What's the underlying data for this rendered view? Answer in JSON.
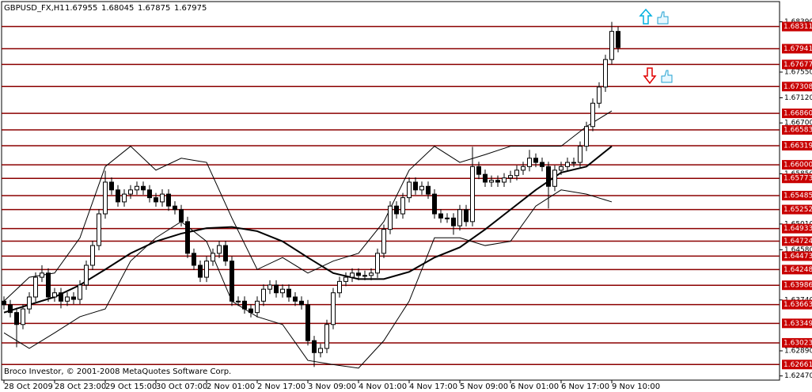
{
  "chart_data": {
    "type": "candlestick",
    "symbol": "GBPUSD_FX,H1",
    "quote": [
      1.67955,
      1.68045,
      1.67875,
      1.67975
    ],
    "footer": "Broco Investor, © 2001-2008 MetaQuotes Software Corp.",
    "categories": [
      "28 Oct 2009",
      null,
      null,
      null,
      null,
      null,
      null,
      null,
      "28 Oct 23:00",
      null,
      null,
      null,
      null,
      null,
      null,
      null,
      "29 Oct 15:00",
      null,
      null,
      null,
      null,
      null,
      null,
      null,
      "30 Oct 07:00",
      null,
      null,
      null,
      null,
      null,
      null,
      null,
      "2 Nov 01:00",
      null,
      null,
      null,
      null,
      null,
      null,
      null,
      "2 Nov 17:00",
      null,
      null,
      null,
      null,
      null,
      null,
      null,
      "3 Nov 09:00",
      null,
      null,
      null,
      null,
      null,
      null,
      null,
      "4 Nov 01:00",
      null,
      null,
      null,
      null,
      null,
      null,
      null,
      "4 Nov 17:00",
      null,
      null,
      null,
      null,
      null,
      null,
      null,
      "5 Nov 09:00",
      null,
      null,
      null,
      null,
      null,
      null,
      null,
      "6 Nov 01:00",
      null,
      null,
      null,
      null,
      null,
      null,
      null,
      "6 Nov 17:00",
      null,
      null,
      null,
      null,
      null,
      null,
      null,
      "9 Nov 10:00",
      null
    ],
    "open": [
      1.6372,
      1.6366,
      1.6353,
      1.6333,
      1.6359,
      1.6379,
      1.6412,
      1.6419,
      1.6379,
      1.6386,
      1.6372,
      1.6379,
      1.6375,
      1.6399,
      1.6432,
      1.6465,
      1.6518,
      1.6571,
      1.6558,
      1.6538,
      1.6551,
      1.6558,
      1.6564,
      1.6558,
      1.6545,
      1.6538,
      1.6551,
      1.6531,
      1.6525,
      1.6505,
      1.6452,
      1.6432,
      1.6412,
      1.6439,
      1.6452,
      1.6465,
      1.6439,
      1.6372,
      1.6372,
      1.6359,
      1.6353,
      1.6372,
      1.6392,
      1.6399,
      1.6386,
      1.6392,
      1.6379,
      1.6372,
      1.6366,
      1.6306,
      1.6286,
      1.6293,
      1.6333,
      1.6386,
      1.6405,
      1.6412,
      1.6419,
      1.6415,
      1.6415,
      1.6419,
      1.6452,
      1.6492,
      1.6531,
      1.6518,
      1.6545,
      1.6571,
      1.6558,
      1.6564,
      1.6551,
      1.6518,
      1.6511,
      1.6511,
      1.6498,
      1.6525,
      1.6505,
      1.6597,
      1.6584,
      1.6571,
      1.6574,
      1.6571,
      1.6578,
      1.6582,
      1.6591,
      1.6597,
      1.6611,
      1.6604,
      1.6597,
      1.6564,
      1.6591,
      1.6597,
      1.6604,
      1.6604,
      1.6631,
      1.6664,
      1.6703,
      1.673,
      1.6776,
      1.6823
    ],
    "high": [
      1.638,
      1.6374,
      1.6361,
      1.6367,
      1.6387,
      1.642,
      1.6432,
      1.6427,
      1.6394,
      1.6394,
      1.6387,
      1.6387,
      1.6407,
      1.644,
      1.6473,
      1.6526,
      1.659,
      1.6579,
      1.6566,
      1.6559,
      1.6566,
      1.6572,
      1.6572,
      1.6566,
      1.6553,
      1.6559,
      1.6559,
      1.6539,
      1.6533,
      1.6513,
      1.646,
      1.644,
      1.6447,
      1.646,
      1.6473,
      1.6473,
      1.6447,
      1.638,
      1.638,
      1.6367,
      1.638,
      1.64,
      1.6407,
      1.6407,
      1.64,
      1.64,
      1.6387,
      1.638,
      1.6374,
      1.6314,
      1.6301,
      1.6341,
      1.6394,
      1.6413,
      1.642,
      1.6427,
      1.6427,
      1.6423,
      1.6427,
      1.646,
      1.65,
      1.6539,
      1.6539,
      1.6553,
      1.6579,
      1.6579,
      1.6572,
      1.6572,
      1.6559,
      1.6526,
      1.6519,
      1.6519,
      1.6533,
      1.6533,
      1.663,
      1.6605,
      1.6592,
      1.6582,
      1.6582,
      1.6586,
      1.659,
      1.6599,
      1.6605,
      1.6625,
      1.6619,
      1.6612,
      1.6605,
      1.6599,
      1.6605,
      1.6612,
      1.6612,
      1.6639,
      1.6672,
      1.6711,
      1.6738,
      1.6784,
      1.6839,
      1.6831
    ],
    "low": [
      1.6358,
      1.6345,
      1.6295,
      1.6325,
      1.6351,
      1.6371,
      1.6404,
      1.6371,
      1.6371,
      1.636,
      1.6364,
      1.6367,
      1.6367,
      1.6391,
      1.6424,
      1.6457,
      1.651,
      1.655,
      1.653,
      1.653,
      1.6543,
      1.655,
      1.655,
      1.6537,
      1.653,
      1.653,
      1.6523,
      1.6517,
      1.6497,
      1.6444,
      1.6424,
      1.6404,
      1.6404,
      1.6431,
      1.6444,
      1.6431,
      1.6364,
      1.6364,
      1.6351,
      1.6345,
      1.6345,
      1.6364,
      1.6384,
      1.6378,
      1.6378,
      1.6371,
      1.6364,
      1.6358,
      1.6298,
      1.6262,
      1.6278,
      1.6285,
      1.6325,
      1.6378,
      1.6397,
      1.6404,
      1.6407,
      1.6407,
      1.6407,
      1.6411,
      1.6444,
      1.6484,
      1.651,
      1.651,
      1.6537,
      1.655,
      1.655,
      1.6543,
      1.651,
      1.6503,
      1.6503,
      1.6483,
      1.649,
      1.6497,
      1.6497,
      1.6576,
      1.6563,
      1.6563,
      1.6563,
      1.6563,
      1.657,
      1.6574,
      1.6583,
      1.6589,
      1.6596,
      1.6589,
      1.6527,
      1.6556,
      1.6583,
      1.6589,
      1.6596,
      1.6596,
      1.6623,
      1.6656,
      1.6695,
      1.6722,
      1.6768,
      1.6788
    ],
    "close": [
      1.6366,
      1.6353,
      1.6333,
      1.6359,
      1.6379,
      1.6412,
      1.6419,
      1.6379,
      1.6386,
      1.6372,
      1.6379,
      1.6375,
      1.6399,
      1.6432,
      1.6465,
      1.6518,
      1.6571,
      1.6558,
      1.6538,
      1.6551,
      1.6558,
      1.6564,
      1.6558,
      1.6545,
      1.6538,
      1.6551,
      1.6531,
      1.6525,
      1.6505,
      1.6452,
      1.6432,
      1.6412,
      1.6439,
      1.6452,
      1.6465,
      1.6439,
      1.6372,
      1.6372,
      1.6359,
      1.6353,
      1.6372,
      1.6392,
      1.6399,
      1.6386,
      1.6392,
      1.6379,
      1.6372,
      1.6366,
      1.6306,
      1.6286,
      1.6293,
      1.6333,
      1.6386,
      1.6405,
      1.6412,
      1.6419,
      1.6415,
      1.6415,
      1.6419,
      1.6452,
      1.6492,
      1.6531,
      1.6518,
      1.6545,
      1.6571,
      1.6558,
      1.6564,
      1.6551,
      1.6518,
      1.6511,
      1.6511,
      1.6498,
      1.6525,
      1.6505,
      1.6597,
      1.6584,
      1.6571,
      1.6574,
      1.6571,
      1.6578,
      1.6582,
      1.6591,
      1.6597,
      1.6611,
      1.6604,
      1.6597,
      1.6564,
      1.6591,
      1.6597,
      1.6604,
      1.6604,
      1.6631,
      1.6664,
      1.6703,
      1.673,
      1.6776,
      1.6823,
      1.6796
    ],
    "indicators": {
      "x": [
        0,
        4,
        8,
        12,
        16,
        20,
        24,
        28,
        32,
        36,
        40,
        44,
        48,
        52,
        56,
        60,
        64,
        68,
        72,
        76,
        80,
        84,
        88,
        92,
        96
      ],
      "color": "#000000",
      "series": [
        {
          "width": 2,
          "values": [
            1.6353,
            1.6366,
            1.6379,
            1.6399,
            1.6425,
            1.6452,
            1.6472,
            1.6485,
            1.6494,
            1.6496,
            1.6489,
            1.6472,
            1.6445,
            1.6419,
            1.6409,
            1.6409,
            1.6421,
            1.6445,
            1.6462,
            1.6492,
            1.6525,
            1.6558,
            1.6587,
            1.6597,
            1.6631
          ]
        },
        {
          "width": 1,
          "values": [
            1.6372,
            1.6412,
            1.6419,
            1.6478,
            1.6597,
            1.6631,
            1.6591,
            1.6611,
            1.6604,
            1.6511,
            1.6425,
            1.6445,
            1.6419,
            1.6439,
            1.6452,
            1.6505,
            1.6591,
            1.6631,
            1.6604,
            1.6617,
            1.6631,
            1.6631,
            1.6631,
            1.6664,
            1.669
          ]
        },
        {
          "width": 1,
          "values": [
            1.6319,
            1.6293,
            1.6319,
            1.6346,
            1.6359,
            1.6439,
            1.6478,
            1.6505,
            1.6472,
            1.6372,
            1.6346,
            1.6333,
            1.6273,
            1.6266,
            1.626,
            1.6306,
            1.6372,
            1.6478,
            1.6478,
            1.6465,
            1.6472,
            1.6531,
            1.6558,
            1.6551,
            1.6538
          ]
        }
      ]
    },
    "ylim": [
      1.624,
      1.68755
    ],
    "yticks": [
      {
        "value": 1.6839,
        "label": "1.68390"
      },
      {
        "value": 1.6755,
        "label": "1.67550"
      },
      {
        "value": 1.6712,
        "label": "1.67120"
      },
      {
        "value": 1.667,
        "label": "1.66700"
      },
      {
        "value": 1.6585,
        "label": "1.65850"
      },
      {
        "value": 1.6501,
        "label": "1.65010"
      },
      {
        "value": 1.6458,
        "label": "1.64580"
      },
      {
        "value": 1.6374,
        "label": "1.63740"
      },
      {
        "value": 1.6289,
        "label": "1.62890"
      },
      {
        "value": 1.6247,
        "label": "1.62470"
      }
    ],
    "levels": [
      1.68311,
      1.67941,
      1.67677,
      1.67308,
      {
        "value": 1.6686,
        "label": "1.66860"
      },
      1.66583,
      1.66319,
      {
        "value": 1.66,
        "label": "1.66000"
      },
      1.65773,
      1.65485,
      1.65252,
      1.64933,
      1.64724,
      1.64473,
      1.64248,
      1.63986,
      1.63663,
      1.63349,
      1.63023,
      1.62661
    ],
    "level_color": "#8b0000",
    "level_label_color": "#c80000",
    "candle_color": "#000000"
  }
}
